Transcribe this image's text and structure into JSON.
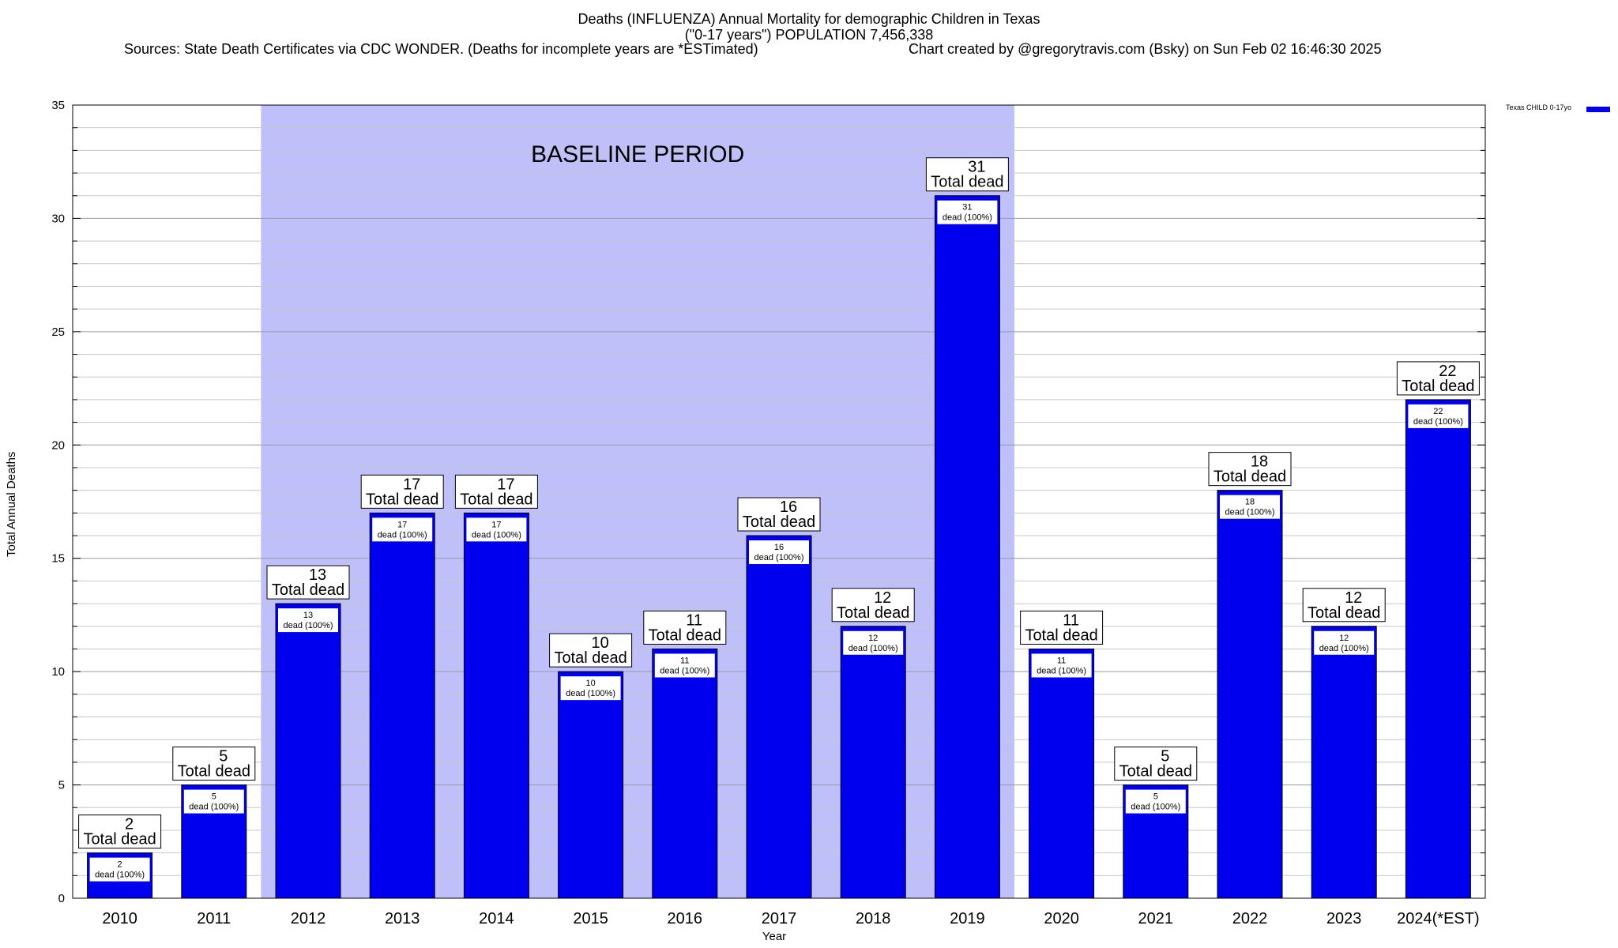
{
  "chart_data": {
    "type": "bar",
    "title_lines": [
      "Deaths (INFLUENZA) Annual Mortality for demographic Children in Texas",
      "(\"0-17 years\") POPULATION 7,456,338"
    ],
    "sources": "Sources: State Death Certificates via CDC WONDER. (Deaths for incomplete years are *ESTimated)",
    "credit": "Chart created by @gregorytravis.com (Bsky) on Sun Feb 02 16:46:30 2025",
    "xlabel": "Year",
    "ylabel": "Total Annual Deaths",
    "ylim": [
      0,
      35
    ],
    "yticks": [
      0,
      5,
      10,
      15,
      20,
      25,
      30,
      35
    ],
    "grid": true,
    "legend_position": "top-right",
    "categories": [
      "2010",
      "2011",
      "2012",
      "2013",
      "2014",
      "2015",
      "2016",
      "2017",
      "2018",
      "2019",
      "2020",
      "2021",
      "2022",
      "2023",
      "2024(*EST)"
    ],
    "series": [
      {
        "name": "Texas CHILD 0-17yo",
        "color": "#0000ee",
        "values": [
          2,
          5,
          13,
          17,
          17,
          10,
          11,
          16,
          12,
          31,
          11,
          5,
          18,
          12,
          22
        ]
      }
    ],
    "bar_label_suffix": "Total dead",
    "inner_label_suffix": "dead (100%)",
    "baseline_period": {
      "label": "BASELINE PERIOD",
      "start_category": "2012",
      "end_category": "2019",
      "color": "#bfbffa"
    }
  }
}
